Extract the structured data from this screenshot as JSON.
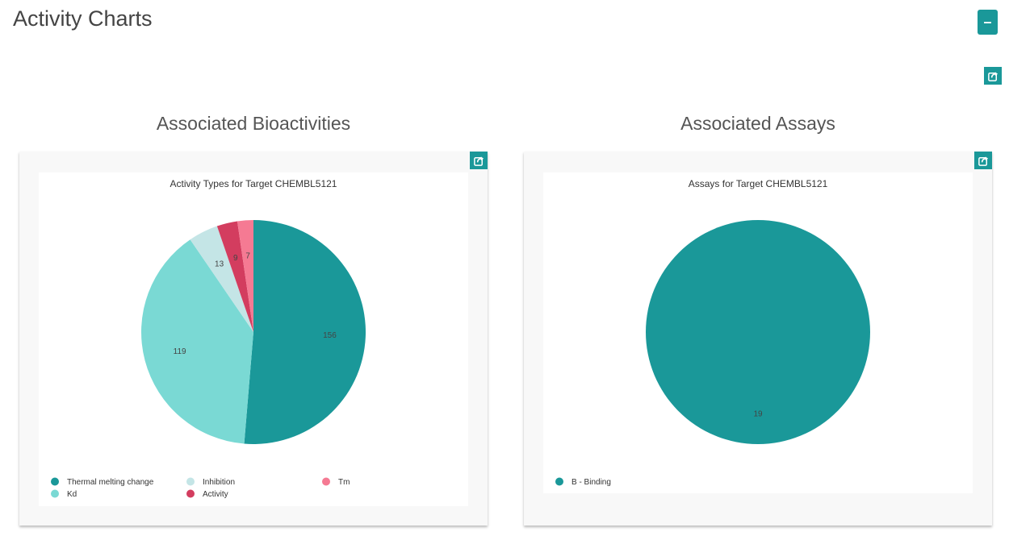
{
  "page": {
    "title": "Activity Charts",
    "collapse_label": "–"
  },
  "icons": {
    "share": "share-icon",
    "collapse": "minus-icon"
  },
  "colors": {
    "accent": "#1a9899"
  },
  "sections": [
    {
      "heading": "Associated Bioactivities",
      "chart_data": {
        "type": "pie",
        "title": "Activity Types for Target CHEMBL5121",
        "slices": [
          {
            "label": "Thermal melting change",
            "value": 156,
            "color": "#1a9899"
          },
          {
            "label": "Kd",
            "value": 119,
            "color": "#7ad9d4"
          },
          {
            "label": "Inhibition",
            "value": 13,
            "color": "#c4e5e6"
          },
          {
            "label": "Activity",
            "value": 9,
            "color": "#d33d5f"
          },
          {
            "label": "Tm",
            "value": 7,
            "color": "#f57a93"
          }
        ],
        "legend_order": [
          "Thermal melting change",
          "Inhibition",
          "Tm",
          "Kd",
          "Activity"
        ],
        "legend_placement": "bottom"
      }
    },
    {
      "heading": "Associated Assays",
      "chart_data": {
        "type": "pie",
        "title": "Assays for Target CHEMBL5121",
        "slices": [
          {
            "label": "B - Binding",
            "value": 19,
            "color": "#1a9899"
          }
        ],
        "legend_order": [
          "B - Binding"
        ],
        "legend_placement": "bottom"
      }
    }
  ]
}
